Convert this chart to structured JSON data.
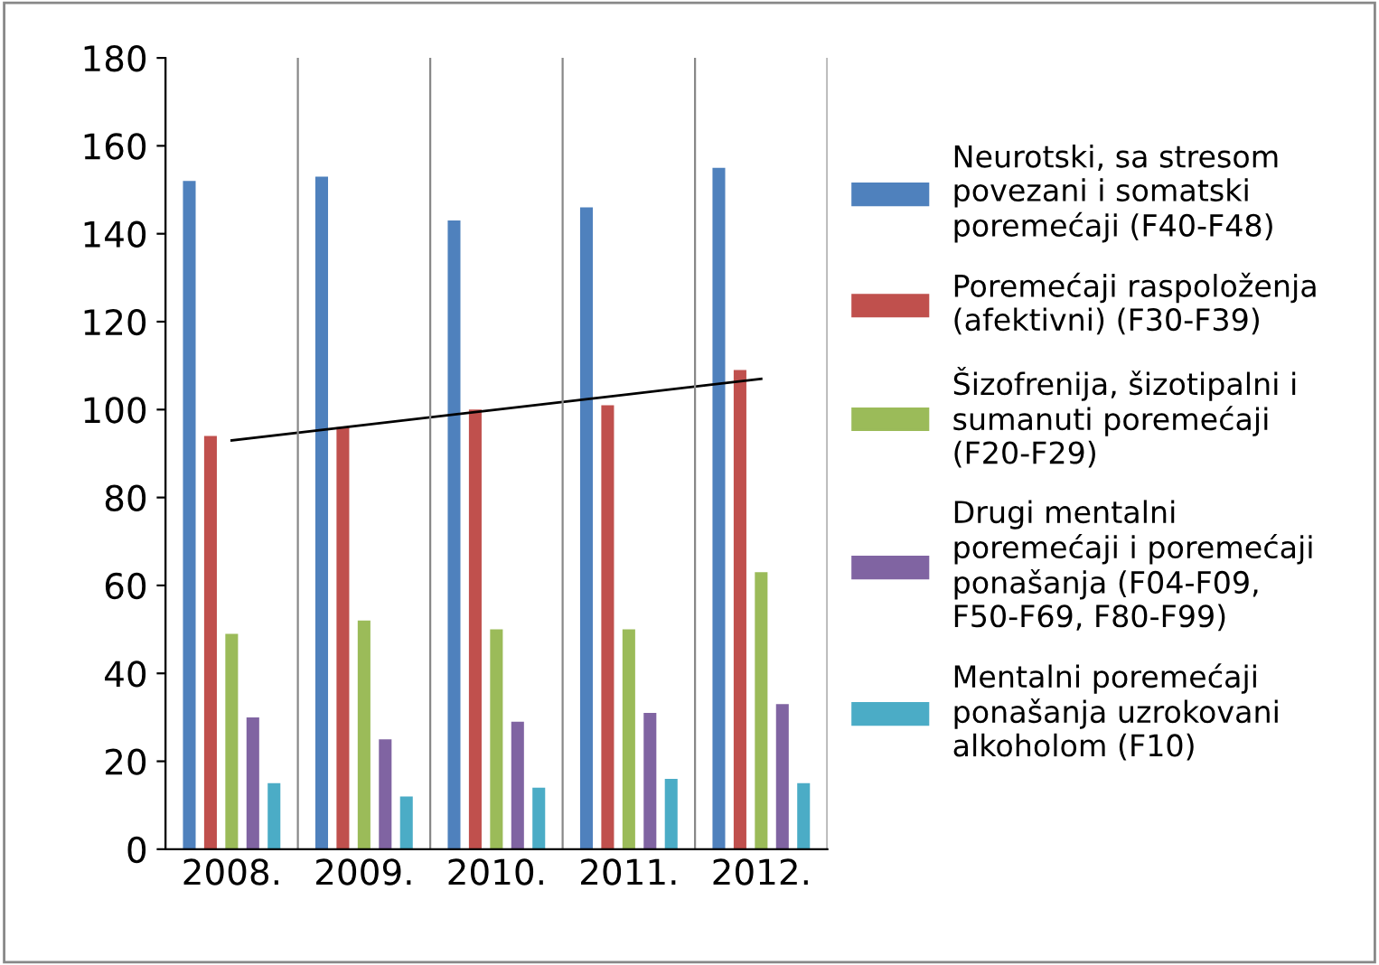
{
  "chart_data": {
    "type": "bar",
    "categories": [
      "2008.",
      "2009.",
      "2010.",
      "2011.",
      "2012."
    ],
    "series": [
      {
        "name": "Neurotski, sa stresom\npovezani i somatski\nporemećaji (F40-F48)",
        "color": "#4f81bd",
        "values": [
          152,
          153,
          143,
          146,
          155
        ]
      },
      {
        "name": "Poremećaji raspoloženja\n(afektivni) (F30-F39)",
        "color": "#c0504d",
        "values": [
          94,
          96,
          100,
          101,
          109
        ]
      },
      {
        "name": "Šizofrenija, šizotipalni i\nsumanuti poremećaji\n(F20-F29)",
        "color": "#9bbb59",
        "values": [
          49,
          52,
          50,
          50,
          63
        ]
      },
      {
        "name": "Drugi mentalni\nporemećaji i poremećaji\nponašanja (F04-F09,\nF50-F69, F80-F99)",
        "color": "#8064a2",
        "values": [
          30,
          25,
          29,
          31,
          33
        ]
      },
      {
        "name": "Mentalni poremećaji\nponašanja uzrokovani\nalkoholom (F10)",
        "color": "#4bacc6",
        "values": [
          15,
          12,
          14,
          16,
          15
        ]
      },
      {
        "type": "line",
        "color": "#000000",
        "values": [
          93,
          96.5,
          100,
          103.5,
          107
        ]
      }
    ],
    "ylim": [
      0,
      180
    ],
    "yticks": [
      0,
      20,
      40,
      60,
      80,
      100,
      120,
      140,
      160,
      180
    ],
    "grid": "x",
    "legend": "right"
  }
}
